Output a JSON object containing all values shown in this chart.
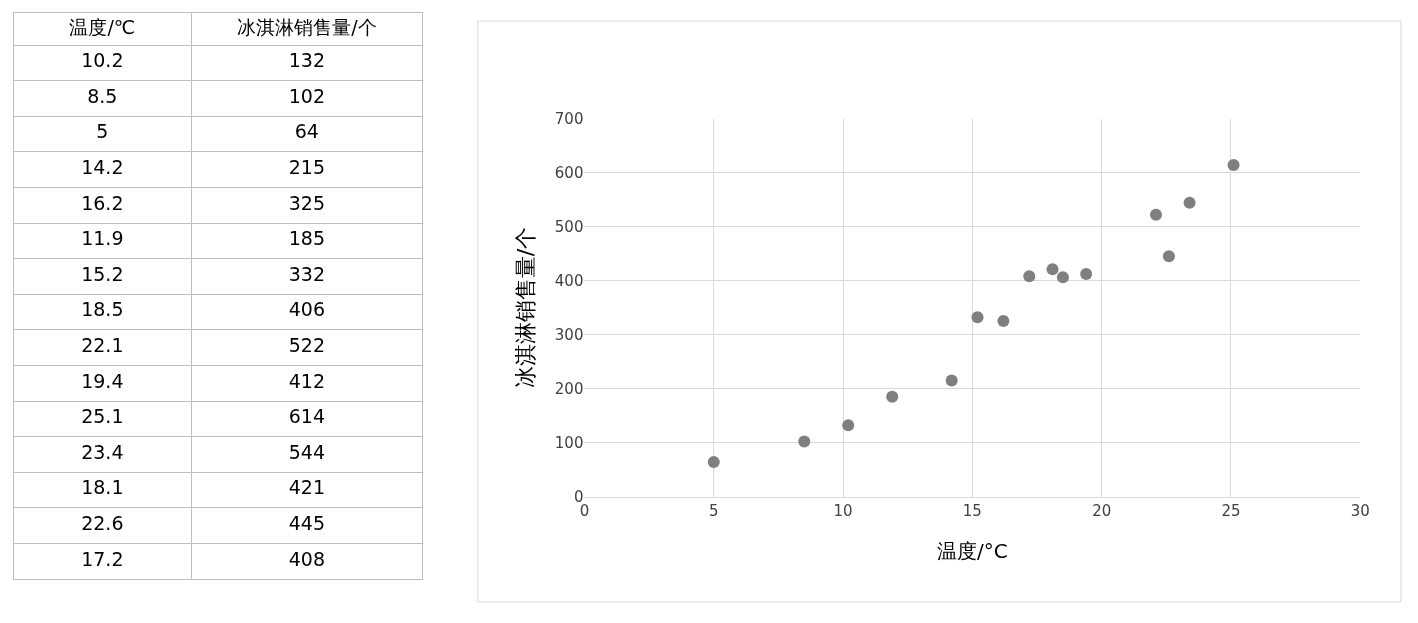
{
  "chart_data": [
    {
      "type": "other",
      "categories": [
        "温度/℃",
        "冰淇淋销售量/个"
      ],
      "cell_labels": [
        [
          "10.2",
          "132"
        ],
        [
          "8.5",
          "102"
        ],
        [
          "5",
          "64"
        ],
        [
          "14.2",
          "215"
        ],
        [
          "16.2",
          "325"
        ],
        [
          "11.9",
          "185"
        ],
        [
          "15.2",
          "332"
        ],
        [
          "18.5",
          "406"
        ],
        [
          "22.1",
          "522"
        ],
        [
          "19.4",
          "412"
        ],
        [
          "25.1",
          "614"
        ],
        [
          "23.4",
          "544"
        ],
        [
          "18.1",
          "421"
        ],
        [
          "22.6",
          "445"
        ],
        [
          "17.2",
          "408"
        ]
      ]
    },
    {
      "type": "scatter",
      "xlabel": "温度/°C",
      "ylabel": "冰淇淋销售量/个",
      "x": [
        10.2,
        8.5,
        5,
        14.2,
        16.2,
        11.9,
        15.2,
        18.5,
        22.1,
        19.4,
        25.1,
        23.4,
        18.1,
        22.6,
        17.2
      ],
      "values": [
        132,
        102,
        64,
        215,
        325,
        185,
        332,
        406,
        522,
        412,
        614,
        544,
        421,
        445,
        408
      ],
      "color": "#7f7f7f",
      "marker": "circle",
      "grid": true,
      "xlim": [
        0,
        30
      ],
      "xticks": [
        0,
        5,
        10,
        15,
        20,
        25,
        30
      ],
      "ylim": [
        0,
        700
      ],
      "yticks": [
        0,
        100,
        200,
        300,
        400,
        500,
        600,
        700
      ]
    }
  ]
}
